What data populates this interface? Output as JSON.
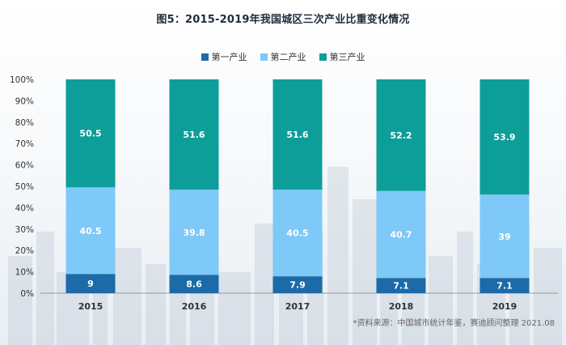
{
  "title": "图5：2015-2019年我国城区三次产业比重变化情况",
  "source": "*资料来源：中国城市统计年鉴，赛迪顾问整理 2021.08",
  "colors": {
    "primary": "#1c6aa8",
    "secondary": "#7ec9f7",
    "tertiary": "#0e9e9a",
    "axis": "#999999"
  },
  "chart_data": {
    "type": "bar",
    "stacked": true,
    "percent": true,
    "title": "图5：2015-2019年我国城区三次产业比重变化情况",
    "categories": [
      "2015",
      "2016",
      "2017",
      "2018",
      "2019"
    ],
    "series": [
      {
        "name": "第一产业",
        "values": [
          9,
          8.6,
          7.9,
          7.1,
          7.1
        ]
      },
      {
        "name": "第二产业",
        "values": [
          40.5,
          39.8,
          40.5,
          40.7,
          39
        ]
      },
      {
        "name": "第三产业",
        "values": [
          50.5,
          51.6,
          51.6,
          52.2,
          53.9
        ]
      }
    ],
    "yticks": [
      "0%",
      "10%",
      "20%",
      "30%",
      "40%",
      "50%",
      "60%",
      "70%",
      "80%",
      "90%",
      "100%"
    ],
    "ylim": [
      0,
      100
    ],
    "legend": "top-center"
  }
}
